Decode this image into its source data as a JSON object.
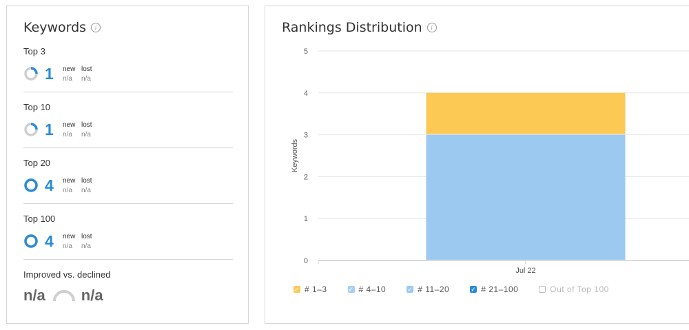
{
  "keywords": {
    "title": "Keywords",
    "info_icon": "info-icon",
    "new_label": "new",
    "lost_label": "lost",
    "sections": [
      {
        "title": "Top 3",
        "count": "1",
        "new": "n/a",
        "lost": "n/a",
        "fill": 0.25
      },
      {
        "title": "Top 10",
        "count": "1",
        "new": "n/a",
        "lost": "n/a",
        "fill": 0.25
      },
      {
        "title": "Top 20",
        "count": "4",
        "new": "n/a",
        "lost": "n/a",
        "fill": 1.0
      },
      {
        "title": "Top 100",
        "count": "4",
        "new": "n/a",
        "lost": "n/a",
        "fill": 1.0
      }
    ],
    "improved": {
      "title": "Improved vs. declined",
      "improved_value": "n/a",
      "declined_value": "n/a"
    }
  },
  "rankings": {
    "title": "Rankings Distribution",
    "info_icon": "info-icon",
    "legend": [
      {
        "label": "# 1–3",
        "color": "#fcc954",
        "checked": true
      },
      {
        "label": "# 4–10",
        "color": "#a6cff2",
        "checked": true
      },
      {
        "label": "# 11–20",
        "color": "#9bc9f0",
        "checked": true
      },
      {
        "label": "# 21–100",
        "color": "#2b8bd6",
        "checked": true
      },
      {
        "label": "Out of Top 100",
        "color": "#bdbdbd",
        "checked": false
      }
    ]
  },
  "chart_data": {
    "type": "bar",
    "stacked": true,
    "categories": [
      "Jul 22"
    ],
    "series": [
      {
        "name": "# 1–3",
        "values": [
          1
        ],
        "color": "#fcc954"
      },
      {
        "name": "# 4–10",
        "values": [
          0
        ],
        "color": "#a6cff2"
      },
      {
        "name": "# 11–20",
        "values": [
          3
        ],
        "color": "#9bc9f0"
      },
      {
        "name": "# 21–100",
        "values": [
          0
        ],
        "color": "#2b8bd6"
      },
      {
        "name": "Out of Top 100",
        "values": [
          0
        ],
        "color": "#bdbdbd"
      }
    ],
    "ylabel": "Keywords",
    "xlabel": "",
    "ylim": [
      0,
      5
    ],
    "yticks": [
      0,
      1,
      2,
      3,
      4,
      5
    ],
    "grid": true,
    "legend_position": "bottom-left"
  }
}
